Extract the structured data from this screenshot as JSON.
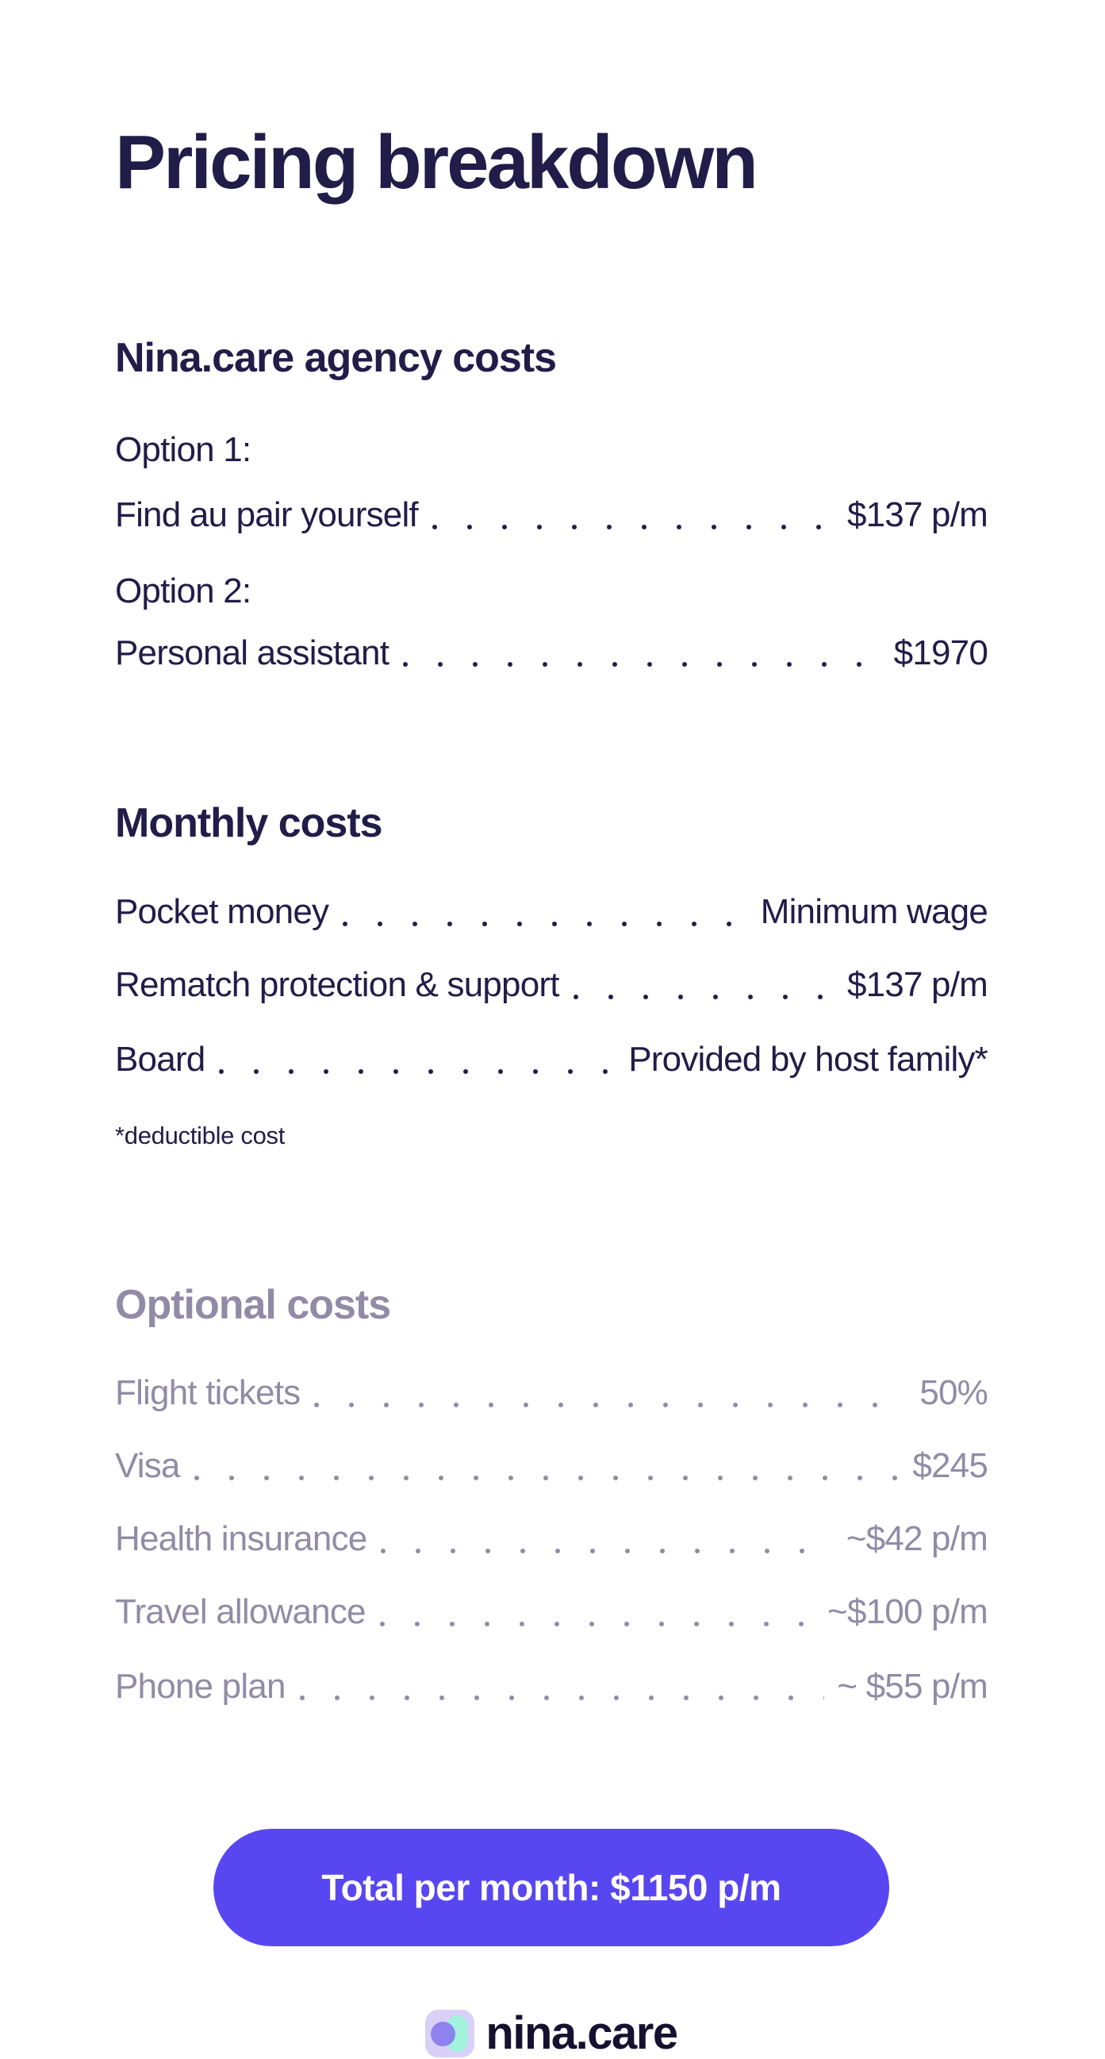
{
  "page": {
    "title": "Pricing breakdown"
  },
  "theme": {
    "background": "#ffffff",
    "text_dark": "#221c49",
    "text_muted": "#918ba6",
    "accent": "#5847f1",
    "button_text": "#ffffff",
    "logo_tile": "#d9d0f7",
    "logo_capsule": "#a3f2de",
    "logo_circle": "#8575ee",
    "brand_text": "#16112f"
  },
  "sections": [
    {
      "heading": "Nina.care agency costs",
      "muted": false,
      "rows": [
        {
          "prefix": "Option 1:",
          "label": "Find au pair yourself",
          "value": "$137 p/m"
        },
        {
          "prefix": "Option 2:",
          "label": "Personal assistant",
          "value": "$1970"
        }
      ]
    },
    {
      "heading": "Monthly costs",
      "muted": false,
      "rows": [
        {
          "label": "Pocket money",
          "value": "Minimum wage"
        },
        {
          "label": "Rematch protection & support",
          "value": "$137 p/m"
        },
        {
          "label": "Board",
          "value": "Provided by host family*"
        }
      ],
      "footnote": "*deductible cost"
    },
    {
      "heading": "Optional costs",
      "muted": true,
      "rows": [
        {
          "label": "Flight tickets",
          "value": "50%"
        },
        {
          "label": "Visa",
          "value": "$245"
        },
        {
          "label": "Health insurance",
          "value": "~$42 p/m"
        },
        {
          "label": "Travel allowance",
          "value": "~$100 p/m"
        },
        {
          "label": "Phone plan",
          "value": "~ $55 p/m"
        }
      ]
    }
  ],
  "total_button": {
    "label": "Total per month: $1150 p/m"
  },
  "footer": {
    "brand": "nina.care"
  }
}
